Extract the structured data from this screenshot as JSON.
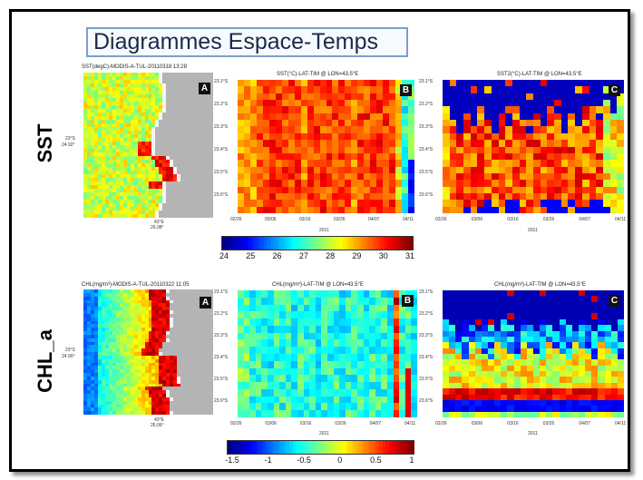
{
  "slide": {
    "title": "Diagrammes Espace-Temps"
  },
  "rows": {
    "sst": {
      "label": "SST",
      "map_title": "SST(degC)-MODIS-A-TUL-20110318 13:28",
      "map_lat": "23°S",
      "map_lat2": "24.92°",
      "map_lon": "43°E",
      "map_lon2": "26.08°",
      "b_title": "SST(°C)-LAT-TIM @ LON=43.5°E",
      "c_title": "SST2(°C)-LAT-TIM @ LON=43.5°E",
      "y_ticks": [
        "23.1°S",
        "23.2°S",
        "23.3°S",
        "23.4°S",
        "23.5°S",
        "23.6°S"
      ],
      "x_ticks": [
        "02/26",
        "03/06",
        "03/16",
        "03/26",
        "04/07",
        "04/11"
      ],
      "x_label": "2011",
      "colorbar_ticks": [
        "24",
        "25",
        "26",
        "27",
        "28",
        "29",
        "30",
        "31"
      ]
    },
    "chl": {
      "label": "CHL_a",
      "map_title": "CHL(mg/m³)-MODIS-A-TUL-20110322 11:05",
      "map_lat": "23°S",
      "map_lat2": "24.90°",
      "map_lon": "43°E",
      "map_lon2": "26.06°",
      "b_title": "CHL(mg/m³)-LAT-TIM @ LON=43.5°E",
      "c_title": "CHL(mg/m³)-LAT-TIM @ LON=43.5°E",
      "y_ticks": [
        "23.1°S",
        "23.2°S",
        "23.3°S",
        "23.4°S",
        "23.5°S",
        "23.6°S"
      ],
      "x_ticks": [
        "02/26",
        "03/06",
        "03/16",
        "03/26",
        "04/07",
        "04/11"
      ],
      "x_label": "2011",
      "colorbar_ticks": [
        "-1.5",
        "-1",
        "-0.5",
        "0",
        "0.5",
        "1"
      ]
    }
  },
  "panel_letters": {
    "a": "A",
    "b": "B",
    "c": "C"
  },
  "palette": {
    "dark_blue": "#00007a",
    "blue": "#1a4dff",
    "cyan": "#3fd4e8",
    "green": "#8fe07a",
    "yellow": "#ffe94a",
    "orange": "#ff9a1a",
    "red": "#e8281e",
    "dark_red": "#a30d0d",
    "land_gray": "#b4b4b4"
  }
}
